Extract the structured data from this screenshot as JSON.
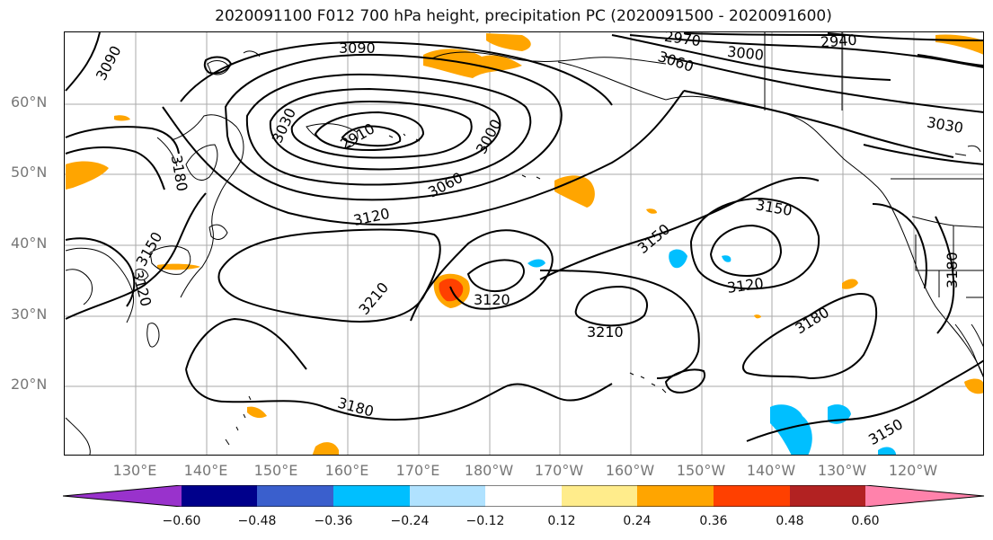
{
  "title": "2020091100 F012 700 hPa height, precipitation PC (2020091500 - 2020091600)",
  "lat_labels": [
    "60°N",
    "50°N",
    "40°N",
    "30°N",
    "20°N"
  ],
  "lon_labels": [
    "130°E",
    "140°E",
    "150°E",
    "160°E",
    "170°E",
    "180°W",
    "170°W",
    "160°W",
    "150°W",
    "140°W",
    "130°W",
    "120°W"
  ],
  "contour_labels": [
    "3090",
    "3090",
    "3030",
    "2970",
    "3000",
    "3060",
    "3120",
    "3150",
    "3150",
    "3120",
    "3180",
    "3150",
    "3180",
    "3210",
    "3120",
    "3210",
    "3180",
    "3150",
    "3180",
    "3120",
    "2970",
    "3060",
    "3000",
    "2940",
    "3030",
    "2910"
  ],
  "colorbar": {
    "ticks": [
      "−0.60",
      "−0.48",
      "−0.36",
      "−0.24",
      "−0.12",
      "0.12",
      "0.24",
      "0.36",
      "0.48",
      "0.60"
    ],
    "colors": [
      "#9932cc",
      "#00008b",
      "#3a5fcd",
      "#00bfff",
      "#b0e2ff",
      "#ffffff",
      "#ffec8b",
      "#ffa500",
      "#ff4000",
      "#b22222",
      "#ff82ab"
    ]
  }
}
